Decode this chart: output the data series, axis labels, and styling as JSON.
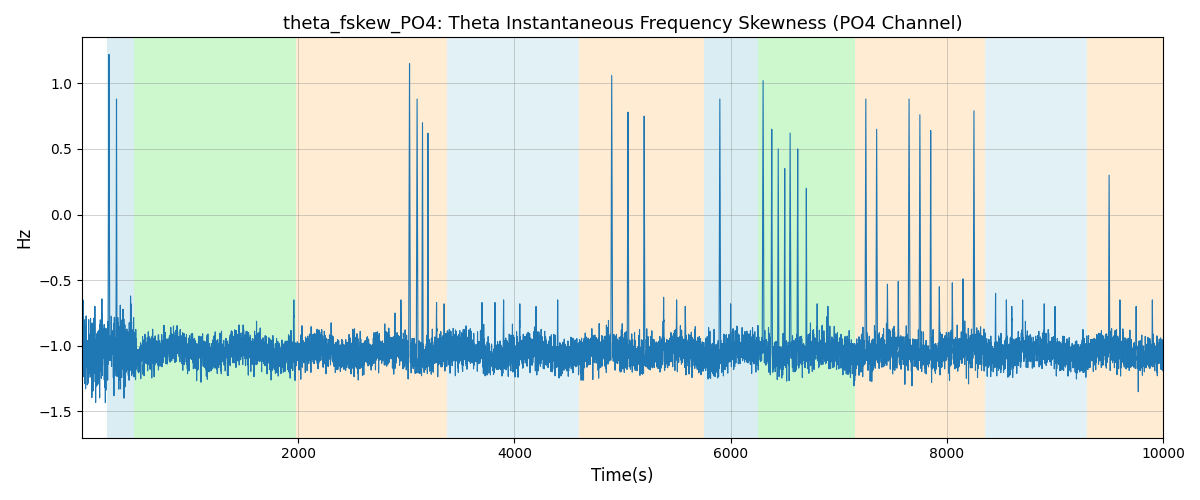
{
  "title": "theta_fskew_PO4: Theta Instantaneous Frequency Skewness (PO4 Channel)",
  "xlabel": "Time(s)",
  "ylabel": "Hz",
  "xlim": [
    0,
    10000
  ],
  "ylim": [
    -1.7,
    1.35
  ],
  "yticks": [
    -1.5,
    -1.0,
    -0.5,
    0.0,
    0.5,
    1.0
  ],
  "xticks": [
    2000,
    4000,
    6000,
    8000,
    10000
  ],
  "background_bands": [
    {
      "xmin": 230,
      "xmax": 480,
      "color": "#add8e6",
      "alpha": 0.45
    },
    {
      "xmin": 480,
      "xmax": 1980,
      "color": "#90ee90",
      "alpha": 0.45
    },
    {
      "xmin": 1980,
      "xmax": 3380,
      "color": "#ffd59e",
      "alpha": 0.45
    },
    {
      "xmin": 3380,
      "xmax": 3750,
      "color": "#add8e6",
      "alpha": 0.35
    },
    {
      "xmin": 3750,
      "xmax": 4600,
      "color": "#add8e6",
      "alpha": 0.35
    },
    {
      "xmin": 4600,
      "xmax": 5750,
      "color": "#ffd59e",
      "alpha": 0.45
    },
    {
      "xmin": 5750,
      "xmax": 6250,
      "color": "#add8e6",
      "alpha": 0.45
    },
    {
      "xmin": 6250,
      "xmax": 7150,
      "color": "#90ee90",
      "alpha": 0.45
    },
    {
      "xmin": 7150,
      "xmax": 8350,
      "color": "#ffd59e",
      "alpha": 0.45
    },
    {
      "xmin": 8350,
      "xmax": 9300,
      "color": "#add8e6",
      "alpha": 0.35
    },
    {
      "xmin": 9300,
      "xmax": 10000,
      "color": "#ffd59e",
      "alpha": 0.45
    }
  ],
  "line_color": "#1f77b4",
  "line_width": 0.8,
  "grid": true,
  "seed": 42,
  "n_points": 10000,
  "base_level": -1.05,
  "noise_std": 0.07
}
